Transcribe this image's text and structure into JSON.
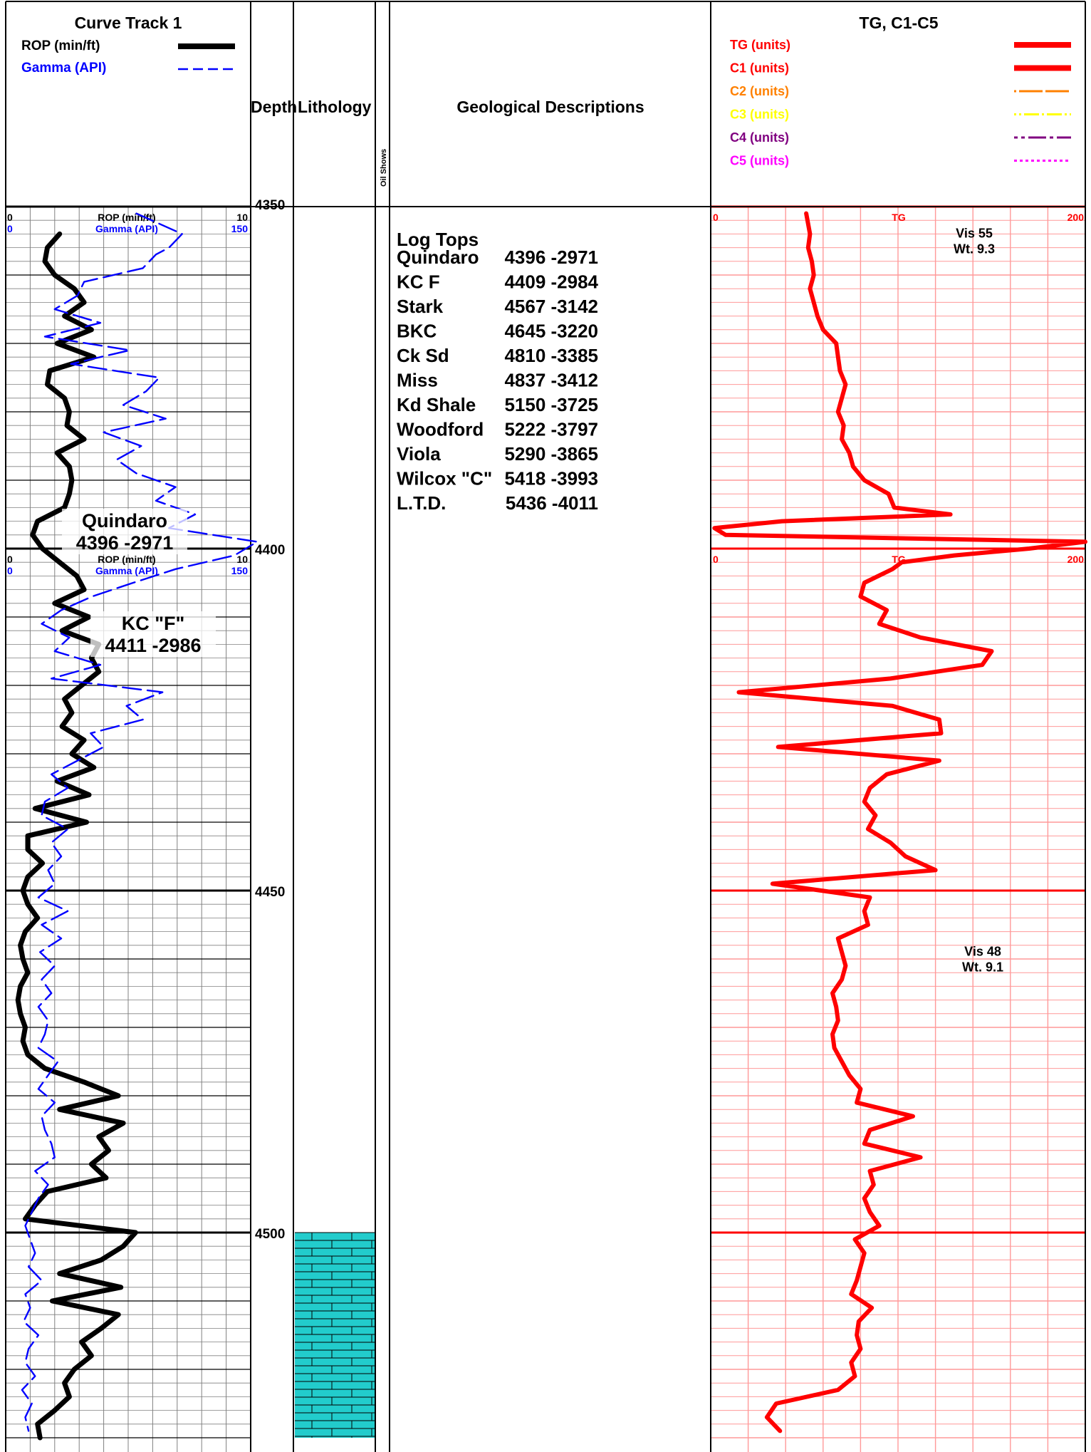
{
  "header": {
    "curve_track_title": "Curve Track 1",
    "rop_legend": "ROP (min/ft)",
    "gamma_legend": "Gamma (API)",
    "depth_label": "Depth",
    "lithology_label": "Lithology",
    "oil_shows_label": "Oil Shows",
    "geo_label": "Geological Descriptions",
    "gas_title": "TG, C1-C5",
    "gas_legend": [
      {
        "label": "TG (units)",
        "color": "#ff0000"
      },
      {
        "label": "C1 (units)",
        "color": "#ff0000"
      },
      {
        "label": "C2 (units)",
        "color": "#ff8000"
      },
      {
        "label": "C3 (units)",
        "color": "#ffff00"
      },
      {
        "label": "C4 (units)",
        "color": "#800080"
      },
      {
        "label": "C5 (units)",
        "color": "#ff00ff"
      }
    ]
  },
  "scales": {
    "rop": {
      "label": "ROP (min/ft)",
      "min_label": "0",
      "max_label": "10",
      "min": 0,
      "max": 10
    },
    "gamma": {
      "label": "Gamma (API)",
      "min_label": "0",
      "max_label": "150",
      "min": 0,
      "max": 150
    },
    "tg": {
      "label": "TG",
      "min_label": "0",
      "max_label": "200",
      "min": 0,
      "max": 200
    }
  },
  "geology": {
    "heading": "Log Tops",
    "tops": [
      {
        "name": "Quindaro",
        "value": "4396 -2971"
      },
      {
        "name": "KC F",
        "value": "4409 -2984"
      },
      {
        "name": "Stark",
        "value": "4567 -3142"
      },
      {
        "name": "BKC",
        "value": "4645 -3220"
      },
      {
        "name": "Ck Sd",
        "value": "4810 -3385"
      },
      {
        "name": "Miss",
        "value": "4837 -3412"
      },
      {
        "name": "Kd Shale",
        "value": "5150 -3725"
      },
      {
        "name": "Woodford",
        "value": "5222 -3797"
      },
      {
        "name": "Viola",
        "value": "5290 -3865"
      },
      {
        "name": "Wilcox \"C\"",
        "value": "5418 -3993"
      },
      {
        "name": "L.T.D.",
        "value": "5436 -4011"
      }
    ]
  },
  "annotations": {
    "curve_track": [
      {
        "depth": 4397.5,
        "lines": [
          "Quindaro",
          "4396 -2971"
        ]
      },
      {
        "depth": 4412.5,
        "lines": [
          "KC \"F\"",
          "4411 -2986"
        ]
      }
    ],
    "mud_properties": [
      {
        "depth": 4354,
        "lines": [
          "Vis 55",
          "Wt. 9.3"
        ]
      },
      {
        "depth": 4459,
        "lines": [
          "Vis 48",
          "Wt. 9.1"
        ]
      }
    ]
  },
  "lithology": [
    {
      "from_depth": 4500,
      "to_depth": 4530,
      "type": "limestone",
      "color": "#22cccc"
    }
  ],
  "chart_data": {
    "type": "line",
    "title": "",
    "ylabel": "Depth",
    "depth_range": [
      4350,
      4530
    ],
    "depth_labels": [
      "4350",
      "4400",
      "4450",
      "4500"
    ],
    "grid": true,
    "series": [
      {
        "name": "ROP (min/ft)",
        "color": "#000000",
        "depth": [
          4354,
          4356,
          4358,
          4360,
          4362,
          4364,
          4366,
          4368,
          4370,
          4372,
          4374,
          4376,
          4378,
          4380,
          4382,
          4384,
          4386,
          4388,
          4390,
          4392,
          4394,
          4396,
          4398,
          4400,
          4402,
          4404,
          4406,
          4408,
          4410,
          4412,
          4414,
          4416,
          4418,
          4420,
          4422,
          4424,
          4426,
          4428,
          4430,
          4432,
          4434,
          4436,
          4438,
          4440,
          4442,
          4444,
          4446,
          4448,
          4450,
          4452,
          4454,
          4456,
          4458,
          4460,
          4462,
          4464,
          4466,
          4468,
          4470,
          4472,
          4474,
          4476,
          4478,
          4480,
          4482,
          4484,
          4486,
          4488,
          4490,
          4492,
          4494,
          4496,
          4498,
          4500,
          4502,
          4504,
          4506,
          4508,
          4510,
          4512,
          4514,
          4516,
          4518,
          4520,
          4522,
          4524,
          4526,
          4528,
          4530
        ],
        "values": [
          2.2,
          1.7,
          1.6,
          2.0,
          2.8,
          3.2,
          2.4,
          3.5,
          2.1,
          3.6,
          1.8,
          1.7,
          2.4,
          2.6,
          2.5,
          3.2,
          2.1,
          2.6,
          2.7,
          2.6,
          2.4,
          1.3,
          1.1,
          1.5,
          2.2,
          2.9,
          3.2,
          2.0,
          3.4,
          2.3,
          3.8,
          3.5,
          3.8,
          3.1,
          2.4,
          2.7,
          2.3,
          3.2,
          2.7,
          3.6,
          2.1,
          3.4,
          1.2,
          3.3,
          0.9,
          0.9,
          1.5,
          0.9,
          0.7,
          0.9,
          1.3,
          0.8,
          0.6,
          0.7,
          0.9,
          0.6,
          0.5,
          0.6,
          0.8,
          0.7,
          0.9,
          1.6,
          3.2,
          4.6,
          2.2,
          4.8,
          3.8,
          4.2,
          3.5,
          4.1,
          1.7,
          1.2,
          0.8,
          5.3,
          4.8,
          3.9,
          2.2,
          4.7,
          1.9,
          4.6,
          3.9,
          3.1,
          3.5,
          2.8,
          2.4,
          2.6,
          2.0,
          1.3,
          1.4
        ]
      },
      {
        "name": "Gamma (API)",
        "color": "#0000ff",
        "depth": [
          4351,
          4354,
          4356,
          4357,
          4359,
          4361,
          4363,
          4365,
          4367,
          4369,
          4371,
          4373,
          4375,
          4377,
          4379,
          4381,
          4383,
          4385,
          4387,
          4389,
          4391,
          4393,
          4395,
          4397,
          4399,
          4401,
          4403,
          4405,
          4407,
          4409,
          4411,
          4413,
          4415,
          4417,
          4419,
          4421,
          4423,
          4425,
          4427,
          4429,
          4431,
          4433,
          4435,
          4437,
          4439,
          4441,
          4443,
          4445,
          4447,
          4449,
          4451,
          4453,
          4455,
          4457,
          4459,
          4461,
          4463,
          4465,
          4467,
          4469,
          4471,
          4473,
          4475,
          4477,
          4479,
          4481,
          4483,
          4485,
          4487,
          4489,
          4491,
          4493,
          4495,
          4497,
          4499,
          4501,
          4503,
          4505,
          4507,
          4509,
          4511,
          4513,
          4515,
          4517,
          4519,
          4521,
          4523,
          4525,
          4527,
          4529
        ],
        "values": [
          80,
          108,
          100,
          92,
          84,
          48,
          44,
          30,
          58,
          24,
          76,
          40,
          94,
          86,
          72,
          98,
          60,
          83,
          68,
          80,
          104,
          92,
          116,
          100,
          154,
          140,
          104,
          78,
          53,
          34,
          22,
          39,
          30,
          58,
          28,
          96,
          74,
          84,
          52,
          60,
          44,
          28,
          38,
          24,
          22,
          38,
          28,
          34,
          26,
          30,
          20,
          38,
          22,
          34,
          21,
          30,
          22,
          28,
          20,
          26,
          24,
          20,
          32,
          26,
          20,
          30,
          22,
          24,
          28,
          30,
          18,
          26,
          20,
          16,
          12,
          15,
          18,
          14,
          22,
          12,
          15,
          11,
          20,
          14,
          12,
          18,
          10,
          16,
          12,
          14
        ]
      },
      {
        "name": "TG",
        "color": "#ff0000",
        "depth": [
          4351,
          4354,
          4356,
          4358,
          4360,
          4362,
          4364,
          4366,
          4368,
          4370,
          4372,
          4374,
          4376,
          4378,
          4380,
          4382,
          4384,
          4386,
          4388,
          4390,
          4392,
          4394,
          4395,
          4396,
          4397,
          4398,
          4399,
          4400,
          4401,
          4402,
          4403,
          4405,
          4407,
          4409,
          4411,
          4413,
          4415,
          4417,
          4419,
          4421,
          4423,
          4425,
          4427,
          4429,
          4431,
          4433,
          4435,
          4437,
          4439,
          4441,
          4443,
          4445,
          4447,
          4449,
          4451,
          4453,
          4455,
          4457,
          4459,
          4461,
          4463,
          4465,
          4467,
          4469,
          4471,
          4473,
          4475,
          4477,
          4479,
          4481,
          4483,
          4485,
          4487,
          4489,
          4491,
          4493,
          4495,
          4497,
          4499,
          4501,
          4503,
          4505,
          4507,
          4509,
          4511,
          4513,
          4515,
          4517,
          4519,
          4521,
          4523,
          4525,
          4527,
          4529
        ],
        "values": [
          51,
          53,
          52,
          54,
          55,
          53,
          55,
          57,
          60,
          67,
          68,
          69,
          72,
          70,
          68,
          71,
          70,
          74,
          76,
          82,
          95,
          98,
          128,
          38,
          2,
          8,
          200,
          170,
          130,
          102,
          97,
          82,
          80,
          94,
          90,
          112,
          150,
          145,
          96,
          15,
          97,
          122,
          123,
          36,
          122,
          94,
          85,
          82,
          88,
          84,
          96,
          104,
          120,
          33,
          85,
          82,
          84,
          68,
          70,
          72,
          70,
          65,
          67,
          68,
          65,
          66,
          70,
          74,
          80,
          78,
          108,
          85,
          82,
          112,
          85,
          87,
          82,
          85,
          90,
          77,
          82,
          80,
          78,
          75,
          86,
          79,
          78,
          80,
          75,
          77,
          68,
          35,
          30,
          37
        ]
      }
    ]
  }
}
